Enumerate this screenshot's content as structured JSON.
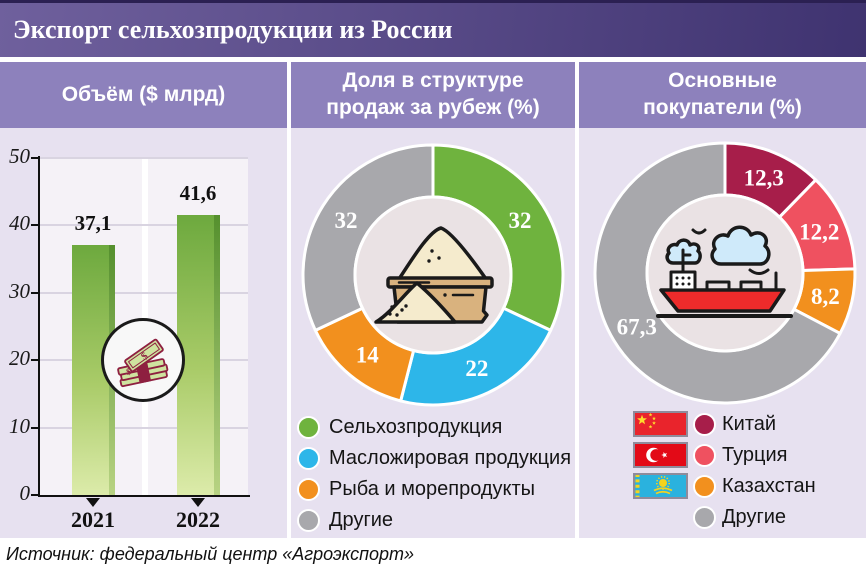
{
  "title": "Экспорт сельхозпродукции из России",
  "source": "Источник: федеральный центр «Агроэкспорт»",
  "panels": [
    {
      "header": "Объём ($ млрд)"
    },
    {
      "header": "Доля в структуре\nпродаж за рубеж (%)"
    },
    {
      "header": "Основные\nпокупатели (%)"
    }
  ],
  "colors": {
    "top_line": "#2b2052",
    "title_gradient_left": "#6f609d",
    "title_gradient_right": "#3f3370",
    "title_text": "#ffffff",
    "panel_header_bg": "#8d81bc",
    "panel_header_text": "#ffffff",
    "panel_bg": "#e7e1f0",
    "page_bg": "#ffffff",
    "donut_center_bg": "#eae2e4"
  },
  "chart_data": [
    {
      "type": "bar",
      "title": "Объём ($ млрд)",
      "categories": [
        "2021",
        "2022"
      ],
      "values": [
        37.1,
        41.6
      ],
      "value_labels": [
        "37,1",
        "41,6"
      ],
      "ylim": [
        0,
        50
      ],
      "yticks": [
        0,
        10,
        20,
        30,
        40,
        50
      ],
      "grid": true,
      "plot_bg": "#f5f2f7",
      "gridline_color": "#d9d4e1",
      "axis_color": "#111111",
      "bar_gradient": [
        "#6da93e",
        "#a9cb68",
        "#dcebaa"
      ],
      "bar_edge_gradient": [
        "#55902e",
        "#b8d383"
      ],
      "center_icon": "money-stack"
    },
    {
      "type": "donut",
      "title": "Доля в структуре продаж за рубеж (%)",
      "start_angle_deg": 0,
      "clockwise": true,
      "center_icon": "grain-sack",
      "legend_position": "bottom",
      "segments": [
        {
          "label": "Сельхозпродукция",
          "value": 32,
          "display": "32",
          "color": "#6fb33e"
        },
        {
          "label": "Масложировая продукция",
          "value": 22,
          "display": "22",
          "color": "#2db6e9"
        },
        {
          "label": "Рыба и морепродукты",
          "value": 14,
          "display": "14",
          "color": "#f2901e"
        },
        {
          "label": "Другие",
          "value": 32,
          "display": "32",
          "color": "#a8a8ac"
        }
      ]
    },
    {
      "type": "donut",
      "title": "Основные покупатели (%)",
      "start_angle_deg": 0,
      "clockwise": true,
      "center_icon": "cargo-ship",
      "legend_position": "bottom",
      "segments": [
        {
          "label": "Китай",
          "value": 12.3,
          "display": "12,3",
          "color": "#a71e4a",
          "flag": "cn"
        },
        {
          "label": "Турция",
          "value": 12.2,
          "display": "12,2",
          "color": "#ef5160",
          "flag": "tr"
        },
        {
          "label": "Казахстан",
          "value": 8.2,
          "display": "8,2",
          "color": "#f2901e",
          "flag": "kz"
        },
        {
          "label": "Другие",
          "value": 67.3,
          "display": "67,3",
          "color": "#a8a8ac",
          "flag": null
        }
      ]
    }
  ]
}
